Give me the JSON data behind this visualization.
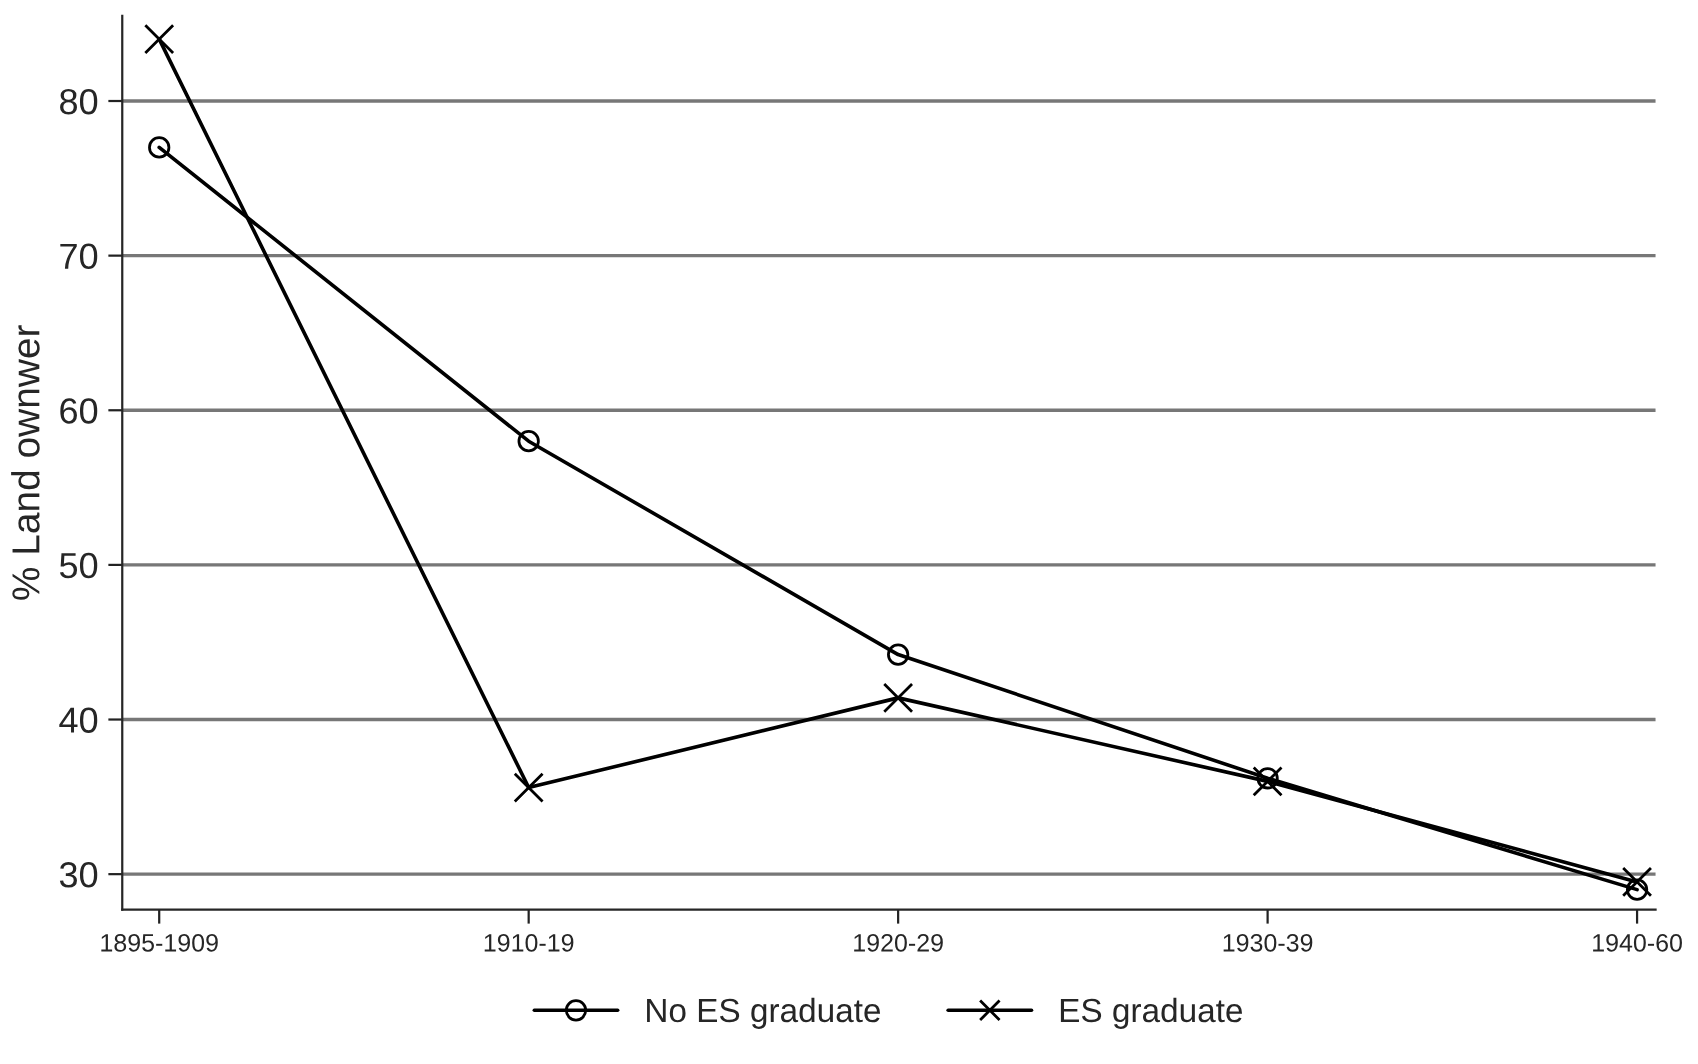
{
  "chart_data": {
    "type": "line",
    "ylabel": "% Land ownwer",
    "categories": [
      "1895-1909",
      "1910-19",
      "1920-29",
      "1930-39",
      "1940-60"
    ],
    "series": [
      {
        "name": "No ES graduate",
        "color": "#000000",
        "marker": "circle",
        "values": [
          77,
          58,
          44.2,
          36.2,
          29
        ]
      },
      {
        "name": "ES graduate",
        "color": "#000000",
        "marker": "cross",
        "values": [
          84,
          35.6,
          41.4,
          36,
          29.5
        ]
      }
    ],
    "ylim": [
      27.7,
      85.5
    ],
    "yticks": [
      30,
      40,
      50,
      60,
      70,
      80
    ],
    "grid": "y",
    "legend": "bottom",
    "line_style": "solid"
  }
}
